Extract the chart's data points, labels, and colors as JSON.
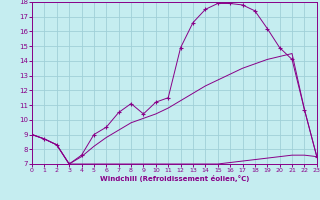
{
  "xlabel": "Windchill (Refroidissement éolien,°C)",
  "xlim": [
    0,
    23
  ],
  "ylim": [
    7,
    18
  ],
  "yticks": [
    7,
    8,
    9,
    10,
    11,
    12,
    13,
    14,
    15,
    16,
    17,
    18
  ],
  "xticks": [
    0,
    1,
    2,
    3,
    4,
    5,
    6,
    7,
    8,
    9,
    10,
    11,
    12,
    13,
    14,
    15,
    16,
    17,
    18,
    19,
    20,
    21,
    22,
    23
  ],
  "bg_color": "#c5edf0",
  "grid_color": "#a0d0d8",
  "line_color": "#880088",
  "curve1_x": [
    0,
    1,
    2,
    3,
    4,
    5,
    6,
    7,
    8,
    9,
    10,
    11,
    12,
    13,
    14,
    15,
    16,
    17,
    18,
    19,
    20,
    21,
    22,
    23
  ],
  "curve1_y": [
    9.0,
    8.7,
    8.3,
    7.0,
    7.6,
    9.0,
    9.5,
    10.5,
    11.1,
    10.4,
    11.2,
    11.5,
    14.9,
    16.6,
    17.5,
    17.9,
    17.9,
    17.8,
    17.4,
    16.2,
    14.9,
    14.1,
    10.7,
    7.5
  ],
  "curve2_x": [
    0,
    1,
    2,
    3,
    4,
    5,
    6,
    7,
    8,
    9,
    10,
    11,
    12,
    13,
    14,
    15,
    16,
    17,
    18,
    19,
    20,
    21,
    22,
    23
  ],
  "curve2_y": [
    9.0,
    8.7,
    8.3,
    7.0,
    7.0,
    7.0,
    7.0,
    7.0,
    7.0,
    7.0,
    7.0,
    7.0,
    7.0,
    7.0,
    7.0,
    7.0,
    7.1,
    7.2,
    7.3,
    7.4,
    7.5,
    7.6,
    7.6,
    7.5
  ],
  "curve3_x": [
    0,
    1,
    2,
    3,
    4,
    5,
    6,
    7,
    8,
    9,
    10,
    11,
    12,
    13,
    14,
    15,
    16,
    17,
    18,
    19,
    20,
    21,
    22,
    23
  ],
  "curve3_y": [
    9.0,
    8.7,
    8.3,
    7.0,
    7.5,
    8.2,
    8.8,
    9.3,
    9.8,
    10.1,
    10.4,
    10.8,
    11.3,
    11.8,
    12.3,
    12.7,
    13.1,
    13.5,
    13.8,
    14.1,
    14.3,
    14.5,
    10.7,
    7.5
  ],
  "marker_indices": [
    0,
    1,
    2,
    3,
    4,
    5,
    6,
    7,
    8,
    9,
    10,
    11,
    12,
    13,
    14,
    15,
    16,
    17,
    18,
    19,
    20,
    21,
    22,
    23
  ]
}
